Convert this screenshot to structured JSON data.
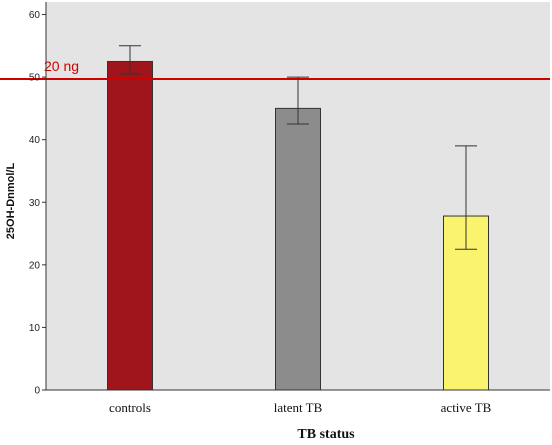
{
  "chart_data": {
    "type": "bar",
    "categories": [
      "controls",
      "latent TB",
      "active TB"
    ],
    "values": [
      52.5,
      45.0,
      27.8
    ],
    "error_bars": [
      {
        "low": 50.5,
        "high": 55.0
      },
      {
        "low": 42.5,
        "high": 50.0
      },
      {
        "low": 22.5,
        "high": 39.0
      }
    ],
    "bar_colors": [
      "#A0141B",
      "#8C8C8C",
      "#FAF36E"
    ],
    "xlabel": "TB status",
    "ylabel": "25OH-Dnmol/L",
    "ylim": [
      0,
      62
    ],
    "yticks": [
      0,
      10,
      20,
      30,
      40,
      50,
      60
    ],
    "grid": false,
    "background": "#E4E4E4",
    "reference_line": {
      "value": 49.7,
      "label": "20 ng",
      "color": "#D10000"
    }
  }
}
